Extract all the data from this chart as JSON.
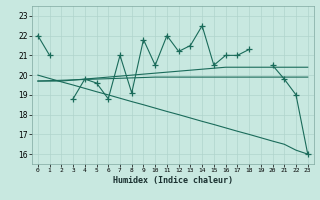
{
  "xlabel": "Humidex (Indice chaleur)",
  "background_color": "#c8e8e0",
  "grid_color": "#b0d4cc",
  "line_color": "#1a6b5a",
  "x_values": [
    0,
    1,
    2,
    3,
    4,
    5,
    6,
    7,
    8,
    9,
    10,
    11,
    12,
    13,
    14,
    15,
    16,
    17,
    18,
    19,
    20,
    21,
    22,
    23
  ],
  "y_zigzag": [
    22,
    21,
    null,
    18.8,
    19.8,
    19.6,
    18.8,
    21,
    19.1,
    21.8,
    20.5,
    22,
    21.2,
    21.5,
    22.5,
    20.5,
    21,
    21,
    21.3,
    null,
    20.5,
    19.8,
    19,
    16
  ],
  "y_flat1": [
    19.7,
    19.7,
    19.7,
    19.75,
    19.8,
    19.85,
    19.9,
    19.95,
    20.0,
    20.05,
    20.1,
    20.15,
    20.2,
    20.25,
    20.3,
    20.35,
    20.4,
    20.4,
    20.4,
    20.4,
    20.4,
    20.4,
    20.4,
    20.4
  ],
  "y_flat2": [
    19.7,
    19.72,
    19.74,
    19.76,
    19.78,
    19.8,
    19.82,
    19.84,
    19.86,
    19.88,
    19.9,
    19.9,
    19.9,
    19.9,
    19.9,
    19.9,
    19.9,
    19.9,
    19.9,
    19.9,
    19.9,
    19.9,
    19.9,
    19.9
  ],
  "y_diagonal": [
    20.0,
    19.83,
    19.66,
    19.5,
    19.33,
    19.16,
    19.0,
    18.83,
    18.66,
    18.5,
    18.33,
    18.16,
    18.0,
    17.83,
    17.66,
    17.5,
    17.33,
    17.16,
    17.0,
    16.83,
    16.66,
    16.5,
    16.2,
    16.0
  ],
  "ylim": [
    15.5,
    23.5
  ],
  "xlim": [
    -0.5,
    23.5
  ],
  "yticks": [
    16,
    17,
    18,
    19,
    20,
    21,
    22,
    23
  ],
  "xticks": [
    0,
    1,
    2,
    3,
    4,
    5,
    6,
    7,
    8,
    9,
    10,
    11,
    12,
    13,
    14,
    15,
    16,
    17,
    18,
    19,
    20,
    21,
    22,
    23
  ],
  "marker": "+",
  "marker_size": 4,
  "linewidth": 0.8
}
